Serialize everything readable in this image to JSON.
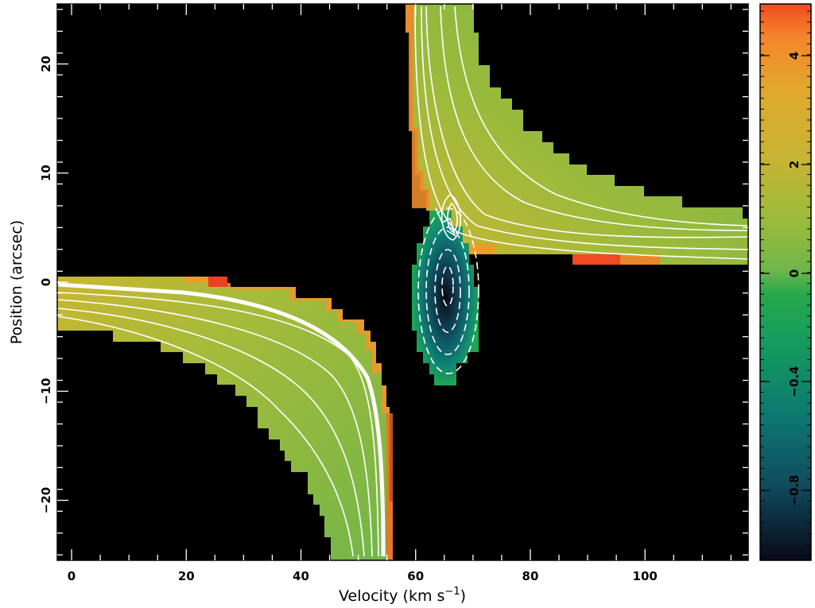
{
  "chart_data": {
    "type": "heatmap",
    "xlabel": "Velocity (km s",
    "xlabel_sup": "−1",
    "xlabel_close": ")",
    "ylabel": "Position (arcsec)",
    "xlim": [
      -2.5,
      118
    ],
    "ylim": [
      -25.5,
      25.5
    ],
    "x_ticks": [
      {
        "value": 0,
        "label": "0"
      },
      {
        "value": 20,
        "label": "20"
      },
      {
        "value": 40,
        "label": "40"
      },
      {
        "value": 60,
        "label": "60"
      },
      {
        "value": 80,
        "label": "80"
      },
      {
        "value": 100,
        "label": "100"
      }
    ],
    "y_ticks": [
      {
        "value": 20,
        "label": "20"
      },
      {
        "value": 10,
        "label": "10"
      },
      {
        "value": 0,
        "label": "0"
      },
      {
        "value": -10,
        "label": "−10"
      },
      {
        "value": -20,
        "label": "−20"
      }
    ],
    "colorbar": {
      "position": "right",
      "ticks": [
        {
          "value": 4,
          "label": "4"
        },
        {
          "value": 2,
          "label": "2"
        },
        {
          "value": 0,
          "label": "0"
        },
        {
          "value": -0.4,
          "label": "−0.4"
        },
        {
          "value": -0.8,
          "label": "−0.8"
        }
      ],
      "color_stops": [
        "#ef5a24",
        "#f6a22a",
        "#d7ba2e",
        "#8ebc3f",
        "#6db64a",
        "#1fa651",
        "#0f8a70",
        "#0c6e73",
        "#0f3f57",
        "#0b0a18"
      ]
    },
    "background_color": "#000000",
    "contour_color": "#ffffff",
    "regions": {
      "lower_left_branch": {
        "description_values": "positive emission extending from velocity -2 to 55 km/s at positions 0 to -25 arcsec"
      },
      "upper_right_branch": {
        "description_values": "positive emission extending from velocity 60 to 118 km/s at positions 25 to 2 arcsec"
      },
      "central_absorption": {
        "center": [
          66,
          0
        ],
        "min_value": -0.9
      }
    }
  }
}
